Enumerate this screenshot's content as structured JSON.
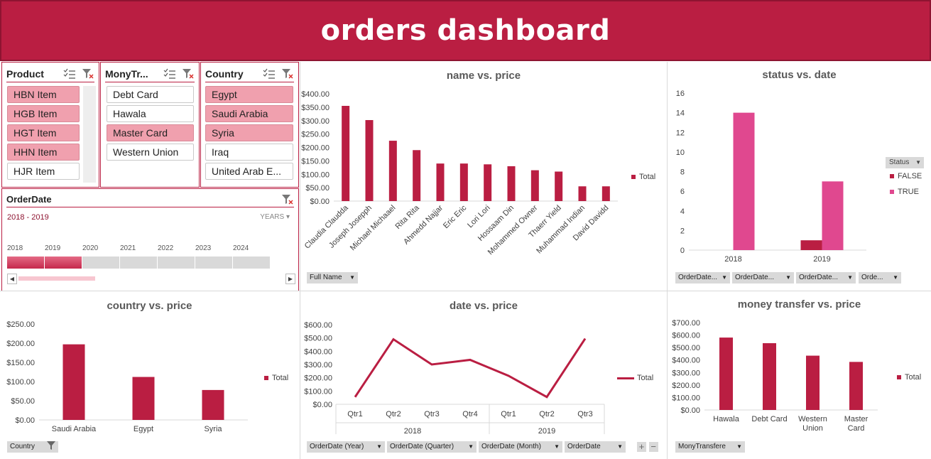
{
  "title": "orders dashboard",
  "colors": {
    "accent": "#BA1E42",
    "selected": "#F0A0AE",
    "true_series": "#E0488F"
  },
  "slicers": {
    "product": {
      "title": "Product",
      "items": [
        {
          "label": "HBN Item",
          "selected": true
        },
        {
          "label": "HGB Item",
          "selected": true
        },
        {
          "label": "HGT Item",
          "selected": true
        },
        {
          "label": "HHN Item",
          "selected": true
        },
        {
          "label": "HJR Item",
          "selected": false
        }
      ]
    },
    "money": {
      "title": "MonyTr...",
      "items": [
        {
          "label": "Debt Card",
          "selected": false
        },
        {
          "label": "Hawala",
          "selected": false
        },
        {
          "label": "Master Card",
          "selected": true
        },
        {
          "label": "Western Union",
          "selected": false
        }
      ]
    },
    "country": {
      "title": "Country",
      "items": [
        {
          "label": "Egypt",
          "selected": true
        },
        {
          "label": "Saudi Arabia",
          "selected": true
        },
        {
          "label": "Syria",
          "selected": true
        },
        {
          "label": "Iraq",
          "selected": false
        },
        {
          "label": "United Arab E...",
          "selected": false
        }
      ]
    }
  },
  "timeline": {
    "title": "OrderDate",
    "range": "2018 - 2019",
    "level": "YEARS",
    "years": [
      "2018",
      "2019",
      "2020",
      "2021",
      "2022",
      "2023",
      "2024"
    ],
    "selected_count": 2
  },
  "charts": {
    "name_price": {
      "title": "name vs. price",
      "legend": "Total",
      "field": "Full Name"
    },
    "status_date": {
      "title": "status vs. date",
      "legend_title": "Status",
      "legend_false": "FALSE",
      "legend_true": "TRUE",
      "fields": [
        "OrderDate...",
        "OrderDate...",
        "OrderDate...",
        "Orde..."
      ]
    },
    "country_price": {
      "title": "country vs. price",
      "legend": "Total",
      "field": "Country"
    },
    "date_price": {
      "title": "date vs. price",
      "legend": "Total",
      "fields": [
        "OrderDate (Year)",
        "OrderDate (Quarter)",
        "OrderDate (Month)",
        "OrderDate"
      ]
    },
    "money_price": {
      "title": "money transfer vs. price",
      "legend": "Total",
      "field": "MonyTransfere"
    }
  },
  "chart_data": [
    {
      "type": "bar",
      "title": "name vs. price",
      "categories": [
        "Claudia Claudda",
        "Joseph Josepph",
        "Michael Michaael",
        "Rita Rita",
        "Ahmedd Najjar",
        "Eric Eric",
        "Lori Lori",
        "Hossaam Din",
        "Mohammed Owner",
        "Thaerr Yield",
        "Muhammad Indian",
        "David Davidd"
      ],
      "series": [
        {
          "name": "Total",
          "values": [
            355,
            302,
            225,
            190,
            140,
            140,
            137,
            130,
            115,
            110,
            55,
            55
          ]
        }
      ],
      "ylim": [
        0,
        400
      ],
      "yticks": [
        "$0.00",
        "$50.00",
        "$100.00",
        "$150.00",
        "$200.00",
        "$250.00",
        "$300.00",
        "$350.00",
        "$400.00"
      ]
    },
    {
      "type": "bar",
      "title": "status vs. date",
      "categories": [
        "2018",
        "2019"
      ],
      "series": [
        {
          "name": "FALSE",
          "values": [
            0,
            1
          ]
        },
        {
          "name": "TRUE",
          "values": [
            14,
            7
          ]
        }
      ],
      "ylim": [
        0,
        16
      ],
      "yticks": [
        "0",
        "2",
        "4",
        "6",
        "8",
        "10",
        "12",
        "14",
        "16"
      ]
    },
    {
      "type": "bar",
      "title": "country vs. price",
      "categories": [
        "Saudi Arabia",
        "Egypt",
        "Syria"
      ],
      "series": [
        {
          "name": "Total",
          "values": [
            197,
            112,
            78
          ]
        }
      ],
      "ylim": [
        0,
        250
      ],
      "yticks": [
        "$0.00",
        "$50.00",
        "$100.00",
        "$150.00",
        "$200.00",
        "$250.00"
      ]
    },
    {
      "type": "line",
      "title": "date vs. price",
      "categories": [
        "Qtr1",
        "Qtr2",
        "Qtr3",
        "Qtr4",
        "Qtr1",
        "Qtr2",
        "Qtr3"
      ],
      "groups": [
        {
          "label": "2018",
          "count": 4
        },
        {
          "label": "2019",
          "count": 3
        }
      ],
      "series": [
        {
          "name": "Total",
          "values": [
            55,
            490,
            300,
            335,
            215,
            55,
            495
          ]
        }
      ],
      "ylim": [
        0,
        600
      ],
      "yticks": [
        "$0.00",
        "$100.00",
        "$200.00",
        "$300.00",
        "$400.00",
        "$500.00",
        "$600.00"
      ]
    },
    {
      "type": "bar",
      "title": "money transfer vs. price",
      "categories": [
        "Hawala",
        "Debt Card",
        "Western Union",
        "Master Card"
      ],
      "series": [
        {
          "name": "Total",
          "values": [
            580,
            535,
            435,
            385
          ]
        }
      ],
      "ylim": [
        0,
        700
      ],
      "yticks": [
        "$0.00",
        "$100.00",
        "$200.00",
        "$300.00",
        "$400.00",
        "$500.00",
        "$600.00",
        "$700.00"
      ]
    }
  ]
}
